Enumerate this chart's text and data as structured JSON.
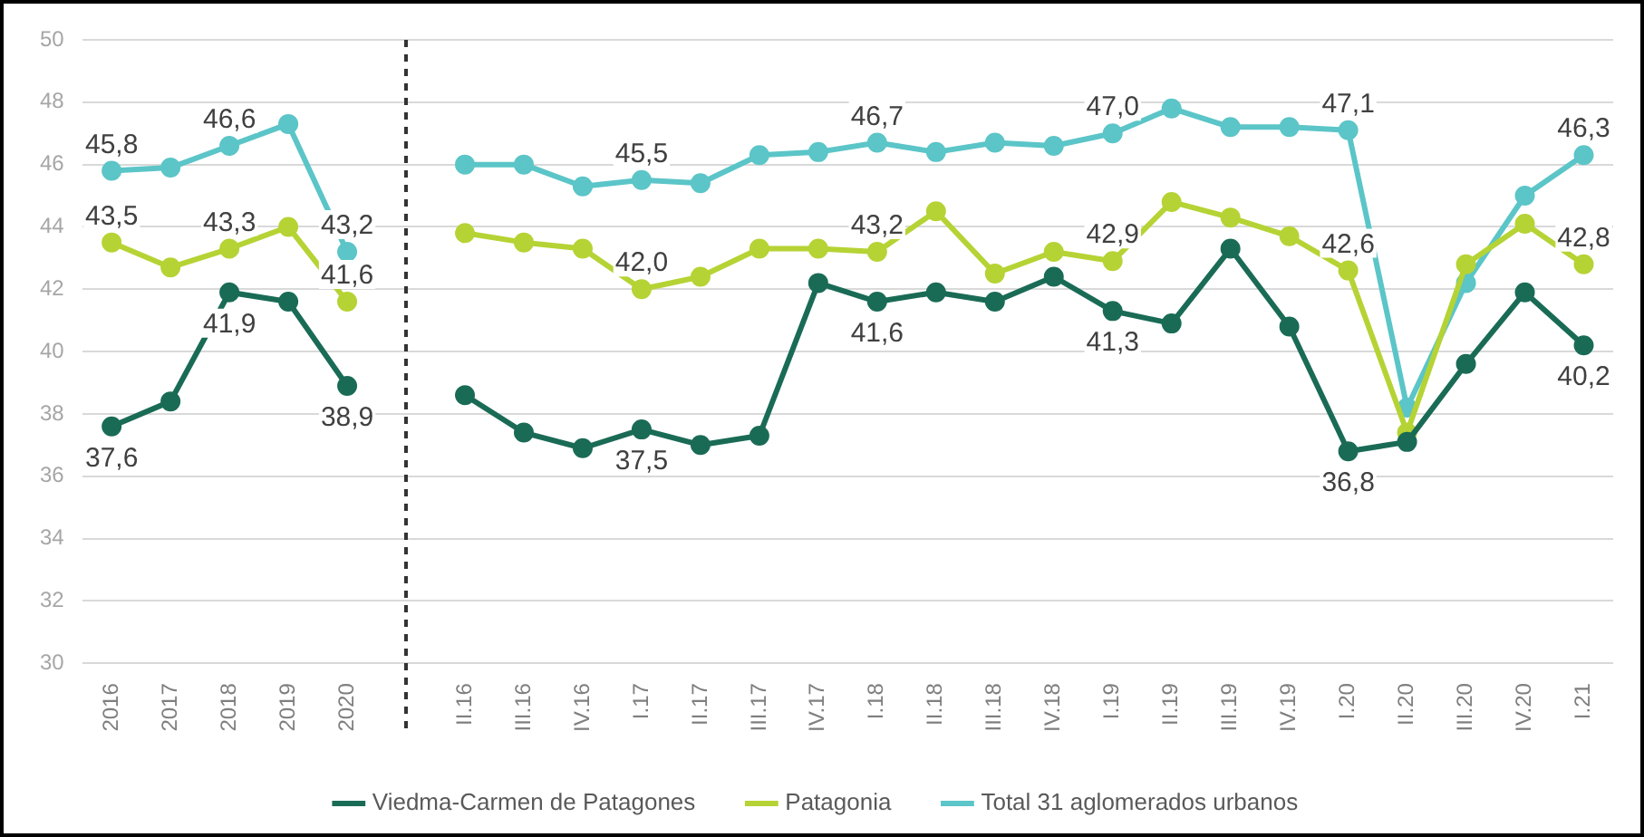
{
  "chart_data": {
    "type": "line",
    "categories": [
      "2016",
      "2017",
      "2018",
      "2019",
      "2020",
      null,
      "II.16",
      "III.16",
      "IV.16",
      "I.17",
      "II.17",
      "III.17",
      "IV.17",
      "I.18",
      "II.18",
      "III.18",
      "IV.18",
      "I.19",
      "II.19",
      "III.19",
      "IV.19",
      "I.20",
      "II.20",
      "III.20",
      "IV.20",
      "I.21"
    ],
    "series": [
      {
        "name": "Viedma-Carmen de Patagones",
        "color": "#1a6b55",
        "values": [
          37.6,
          38.4,
          41.9,
          41.6,
          38.9,
          null,
          38.6,
          37.4,
          36.9,
          37.5,
          37.0,
          37.3,
          42.2,
          41.6,
          41.9,
          41.6,
          42.4,
          41.3,
          40.9,
          43.3,
          40.8,
          36.8,
          37.1,
          39.6,
          41.9,
          40.2
        ],
        "value_labels": [
          "37,6",
          null,
          "41,9",
          null,
          "38,9",
          null,
          null,
          null,
          null,
          "37,5",
          null,
          null,
          null,
          "41,6",
          null,
          null,
          null,
          "41,3",
          null,
          null,
          null,
          "36,8",
          null,
          null,
          null,
          "40,2"
        ]
      },
      {
        "name": "Patagonia",
        "color": "#b5d334",
        "values": [
          43.5,
          42.7,
          43.3,
          44.0,
          41.6,
          null,
          43.8,
          43.5,
          43.3,
          42.0,
          42.4,
          43.3,
          43.3,
          43.2,
          44.5,
          42.5,
          43.2,
          42.9,
          44.8,
          44.3,
          43.7,
          42.6,
          37.4,
          42.8,
          44.1,
          42.8
        ],
        "value_labels": [
          "43,5",
          null,
          "43,3",
          null,
          "41,6",
          null,
          null,
          null,
          null,
          "42,0",
          null,
          null,
          null,
          "43,2",
          null,
          null,
          null,
          "42,9",
          null,
          null,
          null,
          "42,6",
          null,
          null,
          null,
          "42,8"
        ]
      },
      {
        "name": "Total 31 aglomerados urbanos",
        "color": "#5bc5c8",
        "values": [
          45.8,
          45.9,
          46.6,
          47.3,
          43.2,
          null,
          46.0,
          46.0,
          45.3,
          45.5,
          45.4,
          46.3,
          46.4,
          46.7,
          46.4,
          46.7,
          46.6,
          47.0,
          47.8,
          47.2,
          47.2,
          47.1,
          38.2,
          42.2,
          45.0,
          46.3
        ],
        "value_labels": [
          "45,8",
          null,
          "46,6",
          null,
          "43,2",
          null,
          null,
          null,
          null,
          "45,5",
          null,
          null,
          null,
          "46,7",
          null,
          null,
          null,
          "47,0",
          null,
          null,
          null,
          "47,1",
          null,
          null,
          null,
          "46,3"
        ]
      }
    ],
    "ylim": [
      30,
      50
    ],
    "yticks": [
      30,
      32,
      34,
      36,
      38,
      40,
      42,
      44,
      46,
      48,
      50
    ],
    "grid": "y",
    "legend": "bottom",
    "marker": "circle",
    "line_style": "solid"
  }
}
